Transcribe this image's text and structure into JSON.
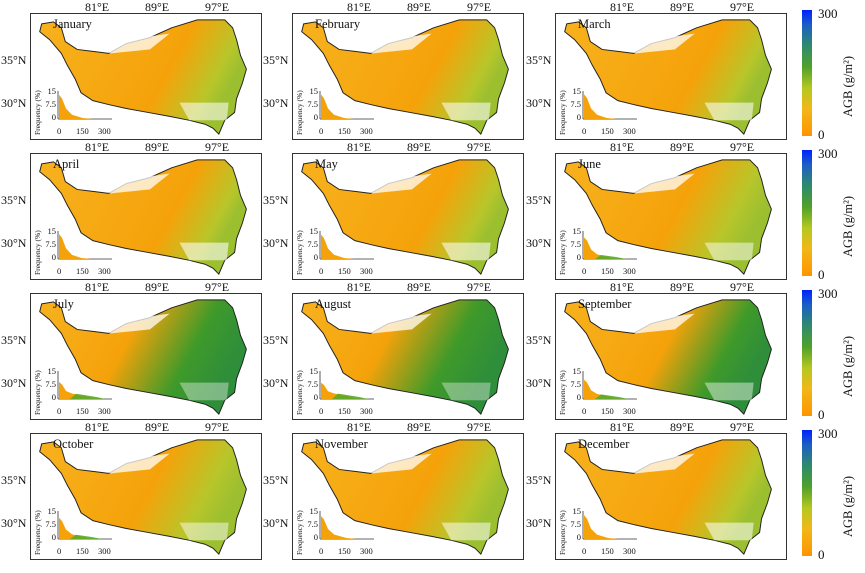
{
  "panels": [
    {
      "month": "January"
    },
    {
      "month": "February"
    },
    {
      "month": "March"
    },
    {
      "month": "April"
    },
    {
      "month": "May"
    },
    {
      "month": "June"
    },
    {
      "month": "July"
    },
    {
      "month": "August"
    },
    {
      "month": "September"
    },
    {
      "month": "October"
    },
    {
      "month": "November"
    },
    {
      "month": "December"
    }
  ],
  "axes": {
    "lon_ticks": [
      "81°E",
      "89°E",
      "97°E"
    ],
    "lat_ticks": [
      "35°N",
      "30°N"
    ]
  },
  "histogram": {
    "ylabel": "Frequency (%)",
    "y_ticks": [
      "15",
      "7.5",
      "0"
    ],
    "x_ticks": [
      "0",
      "150",
      "300"
    ]
  },
  "colorbar": {
    "max_label": "300",
    "min_label": "0",
    "title": "AGB (g/m²)",
    "colors": [
      "#ff9400",
      "#f0b81a",
      "#4fa02a",
      "#0022ff"
    ]
  }
}
